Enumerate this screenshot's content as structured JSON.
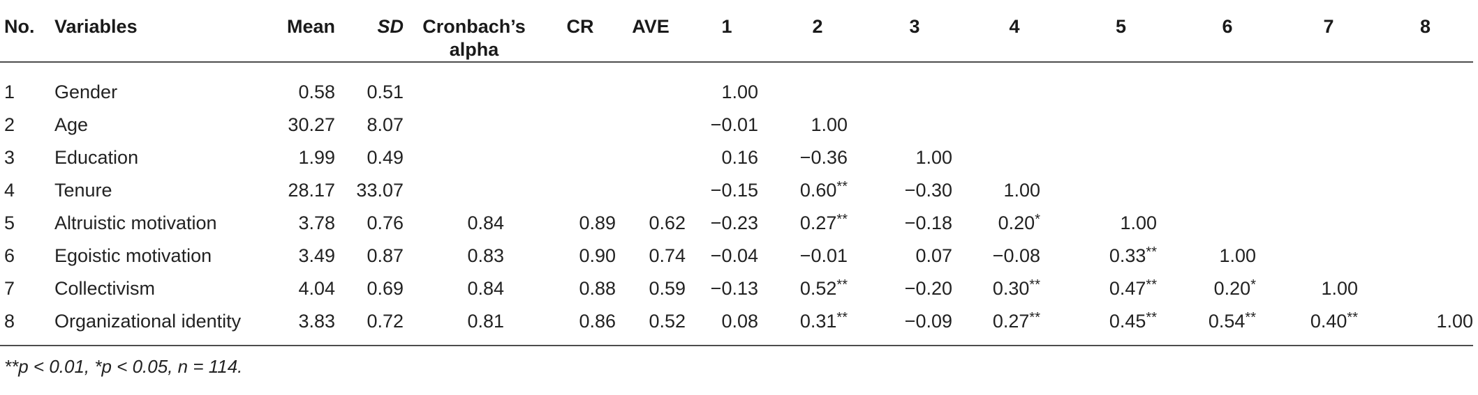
{
  "table": {
    "headers": {
      "no": "No.",
      "variables": "Variables",
      "mean": "Mean",
      "sd": "SD",
      "alpha_line1": "Cronbach’s",
      "alpha_line2": "alpha",
      "cr": "CR",
      "ave": "AVE",
      "c1": "1",
      "c2": "2",
      "c3": "3",
      "c4": "4",
      "c5": "5",
      "c6": "6",
      "c7": "7",
      "c8": "8"
    },
    "rows": [
      {
        "no": "1",
        "variable": "Gender",
        "mean": "0.58",
        "sd": "0.51",
        "alpha": "",
        "cr": "",
        "ave": "",
        "c1": "1.00",
        "c2": "",
        "c3": "",
        "c4": "",
        "c5": "",
        "c6": "",
        "c7": "",
        "c8": ""
      },
      {
        "no": "2",
        "variable": "Age",
        "mean": "30.27",
        "sd": "8.07",
        "alpha": "",
        "cr": "",
        "ave": "",
        "c1": "−0.01",
        "c2": "1.00",
        "c3": "",
        "c4": "",
        "c5": "",
        "c6": "",
        "c7": "",
        "c8": ""
      },
      {
        "no": "3",
        "variable": "Education",
        "mean": "1.99",
        "sd": "0.49",
        "alpha": "",
        "cr": "",
        "ave": "",
        "c1": "0.16",
        "c2": "−0.36",
        "c3": "1.00",
        "c4": "",
        "c5": "",
        "c6": "",
        "c7": "",
        "c8": ""
      },
      {
        "no": "4",
        "variable": "Tenure",
        "mean": "28.17",
        "sd": "33.07",
        "alpha": "",
        "cr": "",
        "ave": "",
        "c1": "−0.15",
        "c2": "0.60**",
        "c3": "−0.30",
        "c4": "1.00",
        "c5": "",
        "c6": "",
        "c7": "",
        "c8": ""
      },
      {
        "no": "5",
        "variable": "Altruistic motivation",
        "mean": "3.78",
        "sd": "0.76",
        "alpha": "0.84",
        "cr": "0.89",
        "ave": "0.62",
        "c1": "−0.23",
        "c2": "0.27**",
        "c3": "−0.18",
        "c4": "0.20*",
        "c5": "1.00",
        "c6": "",
        "c7": "",
        "c8": ""
      },
      {
        "no": "6",
        "variable": "Egoistic motivation",
        "mean": "3.49",
        "sd": "0.87",
        "alpha": "0.83",
        "cr": "0.90",
        "ave": "0.74",
        "c1": "−0.04",
        "c2": "−0.01",
        "c3": "0.07",
        "c4": "−0.08",
        "c5": "0.33**",
        "c6": "1.00",
        "c7": "",
        "c8": ""
      },
      {
        "no": "7",
        "variable": "Collectivism",
        "mean": "4.04",
        "sd": "0.69",
        "alpha": "0.84",
        "cr": "0.88",
        "ave": "0.59",
        "c1": "−0.13",
        "c2": "0.52**",
        "c3": "−0.20",
        "c4": "0.30**",
        "c5": "0.47**",
        "c6": "0.20*",
        "c7": "1.00",
        "c8": ""
      },
      {
        "no": "8",
        "variable": "Organizational identity",
        "mean": "3.83",
        "sd": "0.72",
        "alpha": "0.81",
        "cr": "0.86",
        "ave": "0.52",
        "c1": "0.08",
        "c2": "0.31**",
        "c3": "−0.09",
        "c4": "0.27**",
        "c5": "0.45**",
        "c6": "0.54**",
        "c7": "0.40**",
        "c8": "1.00"
      }
    ]
  },
  "note": "**p < 0.01, *p < 0.05, n = 114."
}
